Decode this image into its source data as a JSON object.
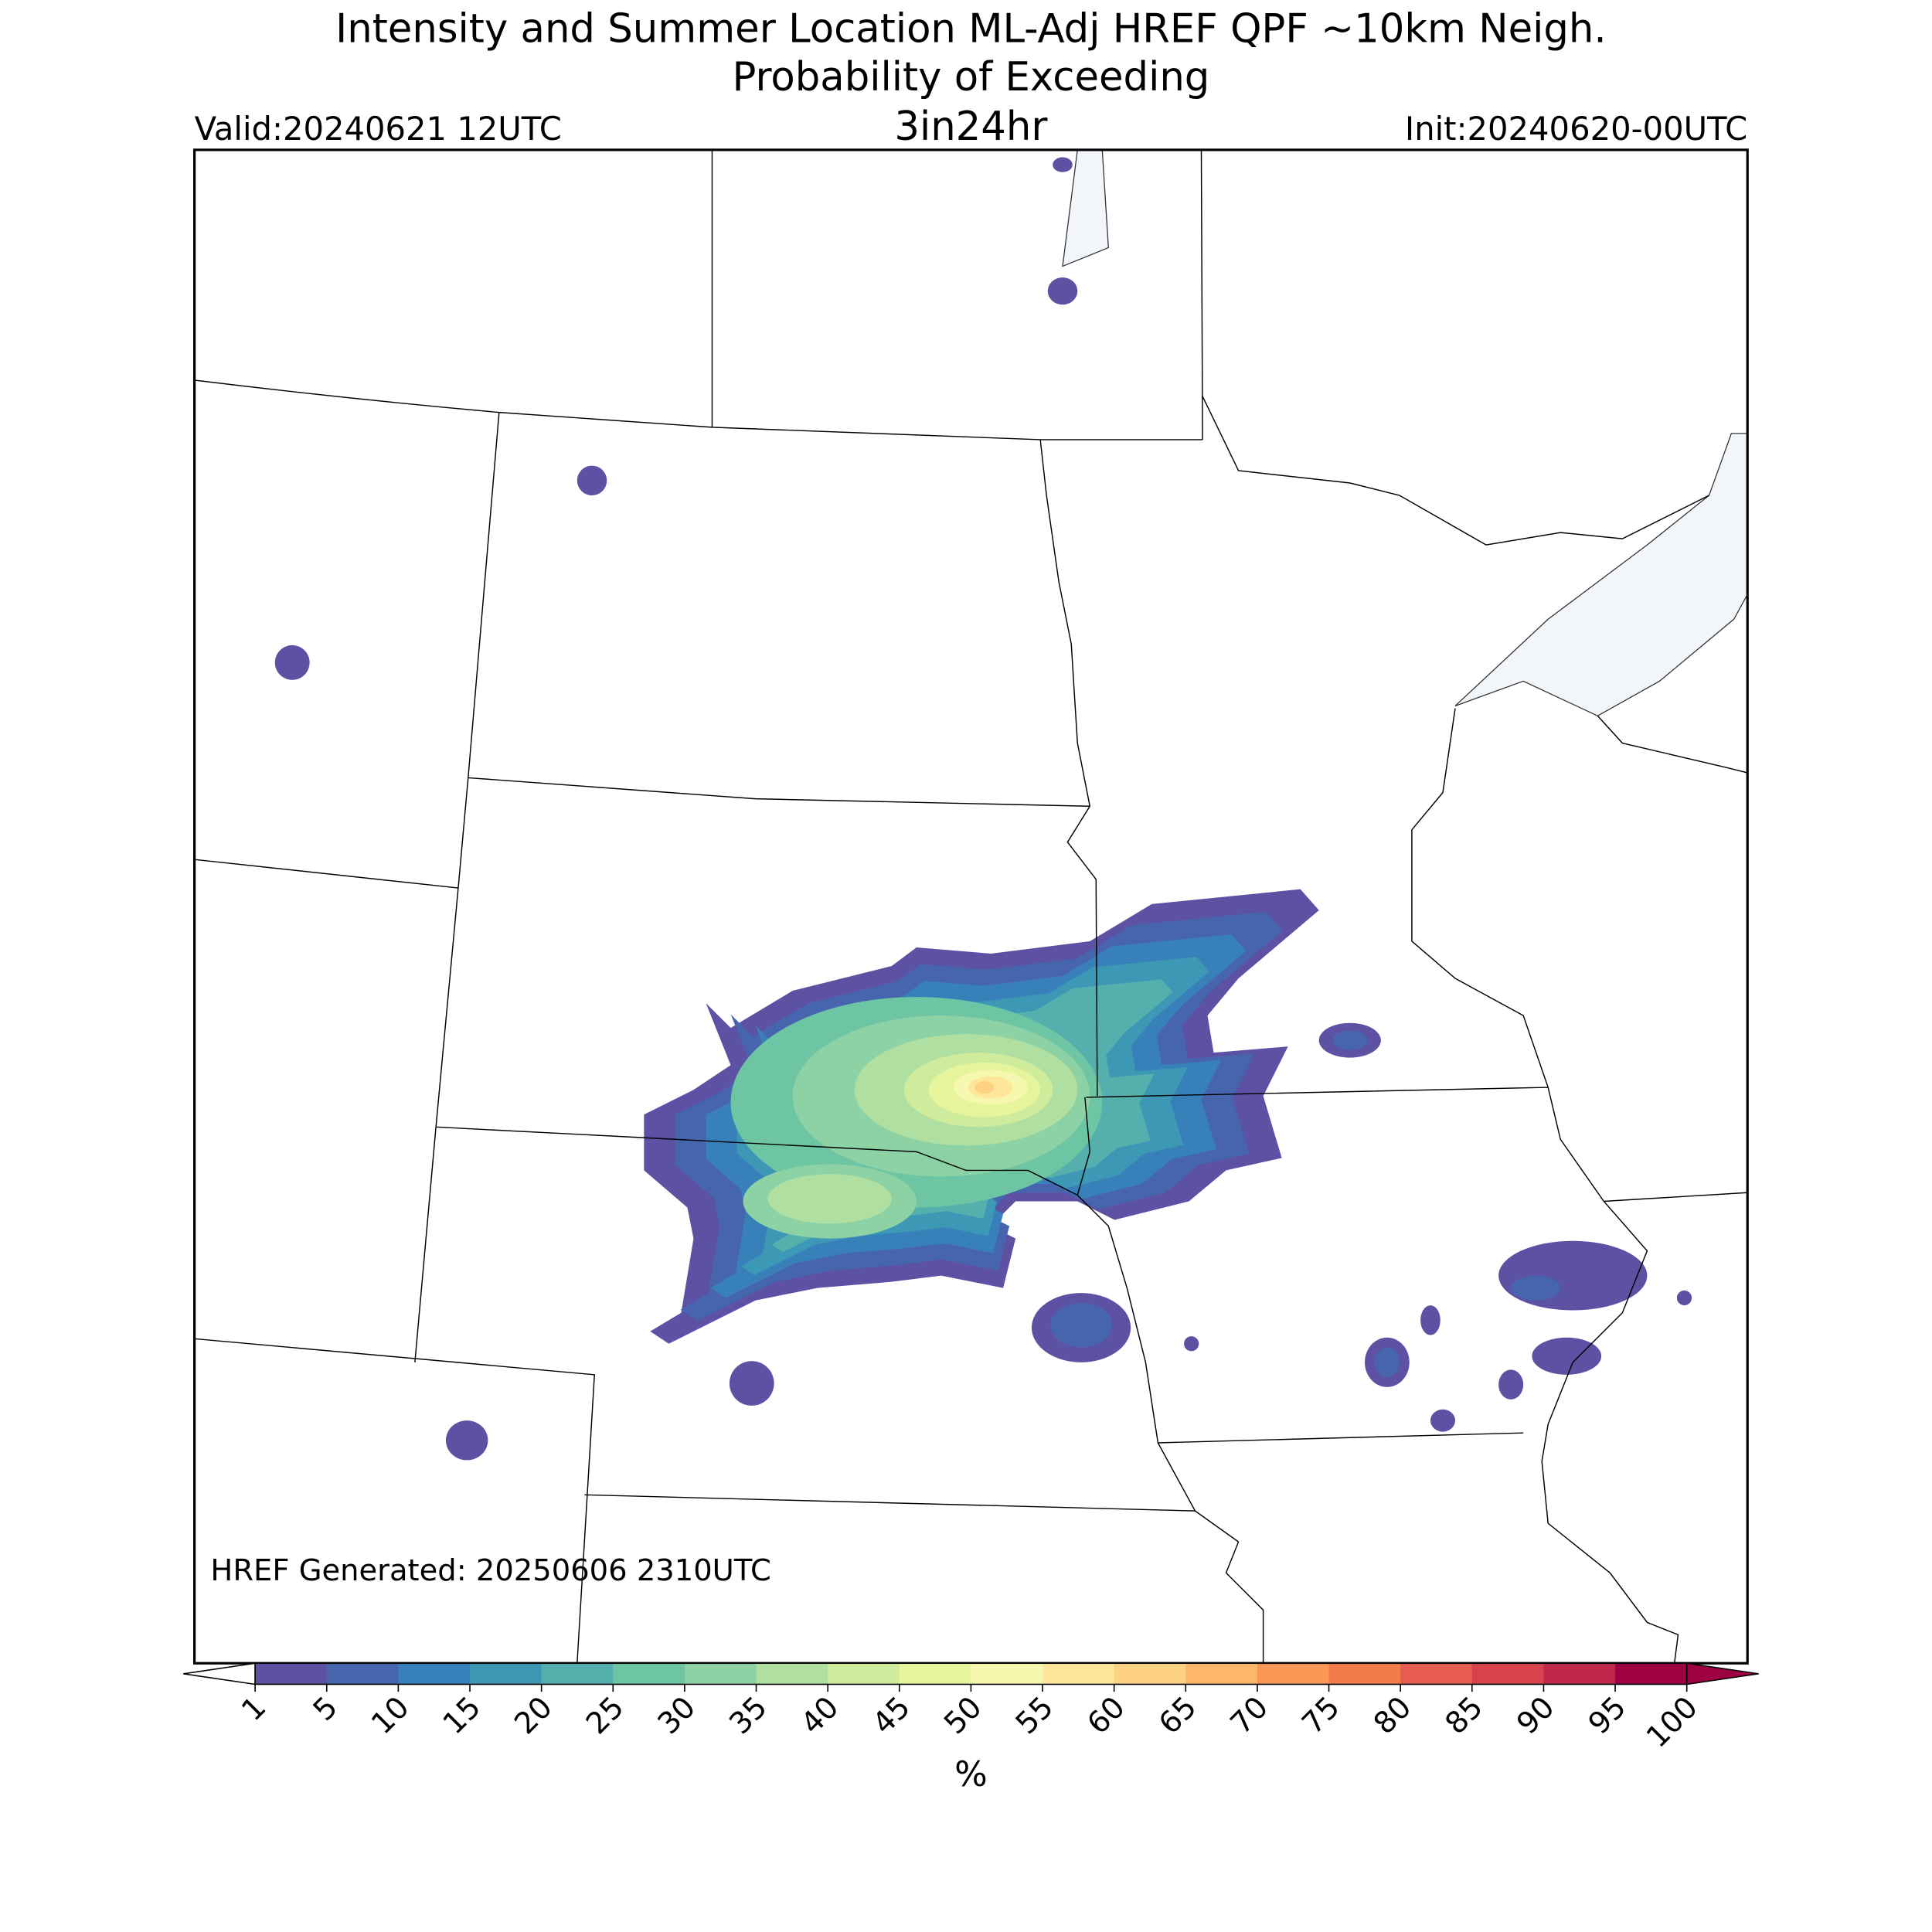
{
  "header": {
    "title": "Intensity and Summer Location ML-Adj HREF QPF ~10km Neigh.",
    "subtitle": "Probability of Exceeding",
    "threshold": "3in24hr",
    "valid": "Valid:20240621 12UTC",
    "init": "Init:20240620-00UTC"
  },
  "footnote": "HREF Generated: 20250606 2310UTC",
  "colorbar": {
    "label": "%",
    "levels": [
      1,
      5,
      10,
      15,
      20,
      25,
      30,
      35,
      40,
      45,
      50,
      55,
      60,
      65,
      70,
      75,
      80,
      85,
      90,
      95,
      100
    ],
    "colors": [
      "#5c51a3",
      "#4765ae",
      "#3880b9",
      "#3d98b5",
      "#55afac",
      "#6ec5a4",
      "#8dd2a4",
      "#b0dfa2",
      "#cfec9d",
      "#e6f59b",
      "#f7f8af",
      "#fee79a",
      "#fed283",
      "#fdb768",
      "#fa9656",
      "#f47c4a",
      "#e65d4f",
      "#d8424d",
      "#c0284a",
      "#9e0142"
    ]
  }
}
